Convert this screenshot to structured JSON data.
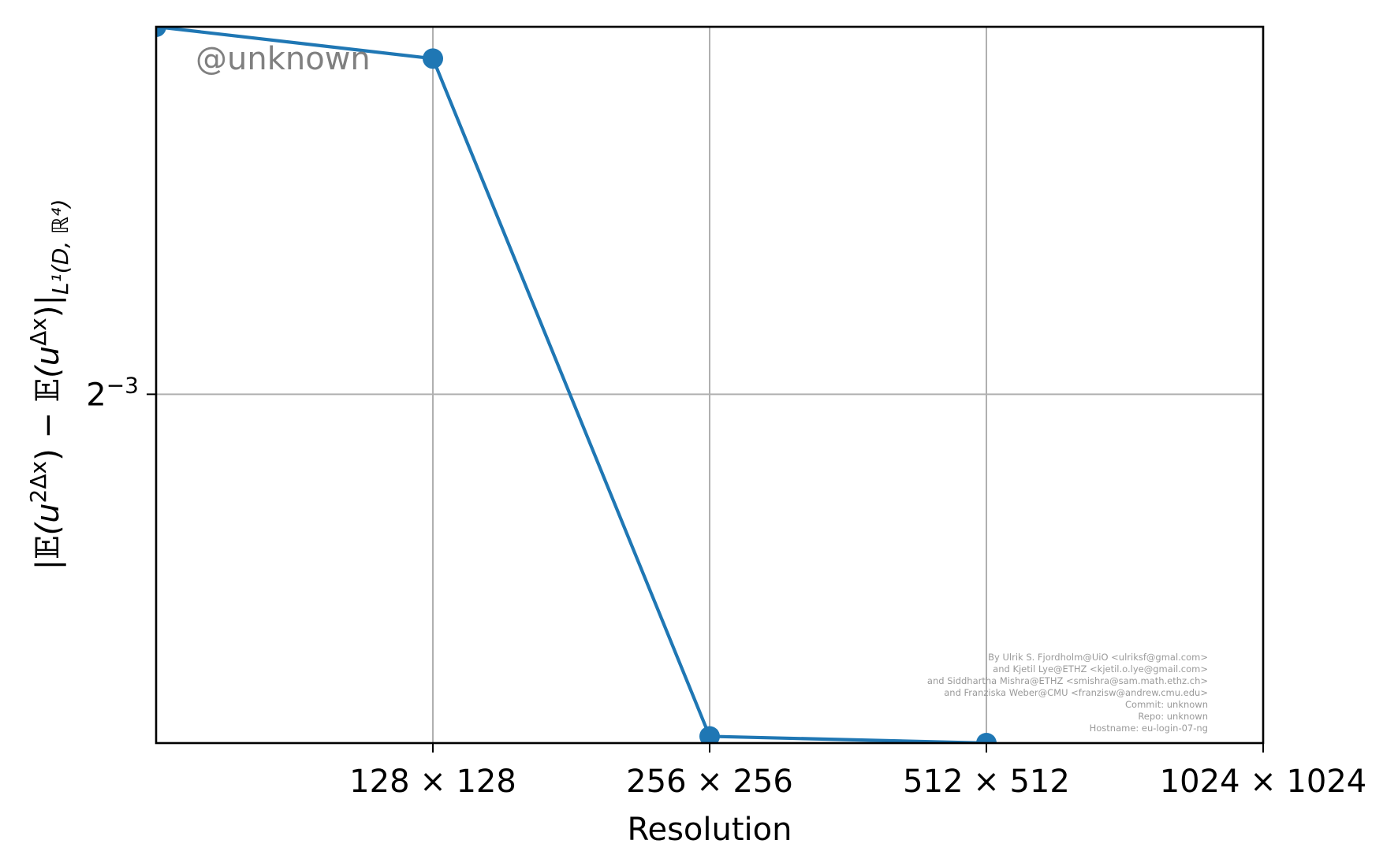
{
  "chart_data": {
    "type": "line",
    "xlabel": "Resolution",
    "ylabel_parts": {
      "open": "|",
      "bb_e_1": "𝔼",
      "paren_open_1": "(u",
      "sup_1": "2Δx",
      "paren_close_1": ")",
      "minus": " − ",
      "bb_e_2": "𝔼",
      "paren_open_2": "(u",
      "sup_2": "Δx",
      "paren_close_2": ")|",
      "sub": "L¹(D, ℝ⁴)"
    },
    "x_scale": "log2",
    "y_scale": "log2",
    "x": [
      64,
      128,
      256,
      512
    ],
    "xlim": [
      64,
      1024
    ],
    "xticks": [
      {
        "value": 128,
        "label": "128 × 128"
      },
      {
        "value": 256,
        "label": "256 × 256"
      },
      {
        "value": 512,
        "label": "512 × 512"
      },
      {
        "value": 1024,
        "label": "1024 × 1024"
      }
    ],
    "yticks": [
      {
        "value": 0.125,
        "base": "2",
        "exp": "−3"
      }
    ],
    "ylim": [
      0.0793,
      0.2019
    ],
    "series": [
      {
        "values": [
          0.2019,
          0.1937,
          0.08,
          0.0793
        ],
        "color": "#1f77b4"
      }
    ],
    "grid": true,
    "watermark": "@unknown",
    "credits": [
      "By Ulrik S. Fjordholm@UiO <ulriksf@gmal.com>",
      "and Kjetil Lye@ETHZ <kjetil.o.lye@gmail.com>",
      "and Siddhartha Mishra@ETHZ <smishra@sam.math.ethz.ch>",
      "and Franziska Weber@CMU <franzisw@andrew.cmu.edu>",
      "Commit: unknown",
      "Repo: unknown",
      "Hostname: eu-login-07-ng"
    ]
  }
}
